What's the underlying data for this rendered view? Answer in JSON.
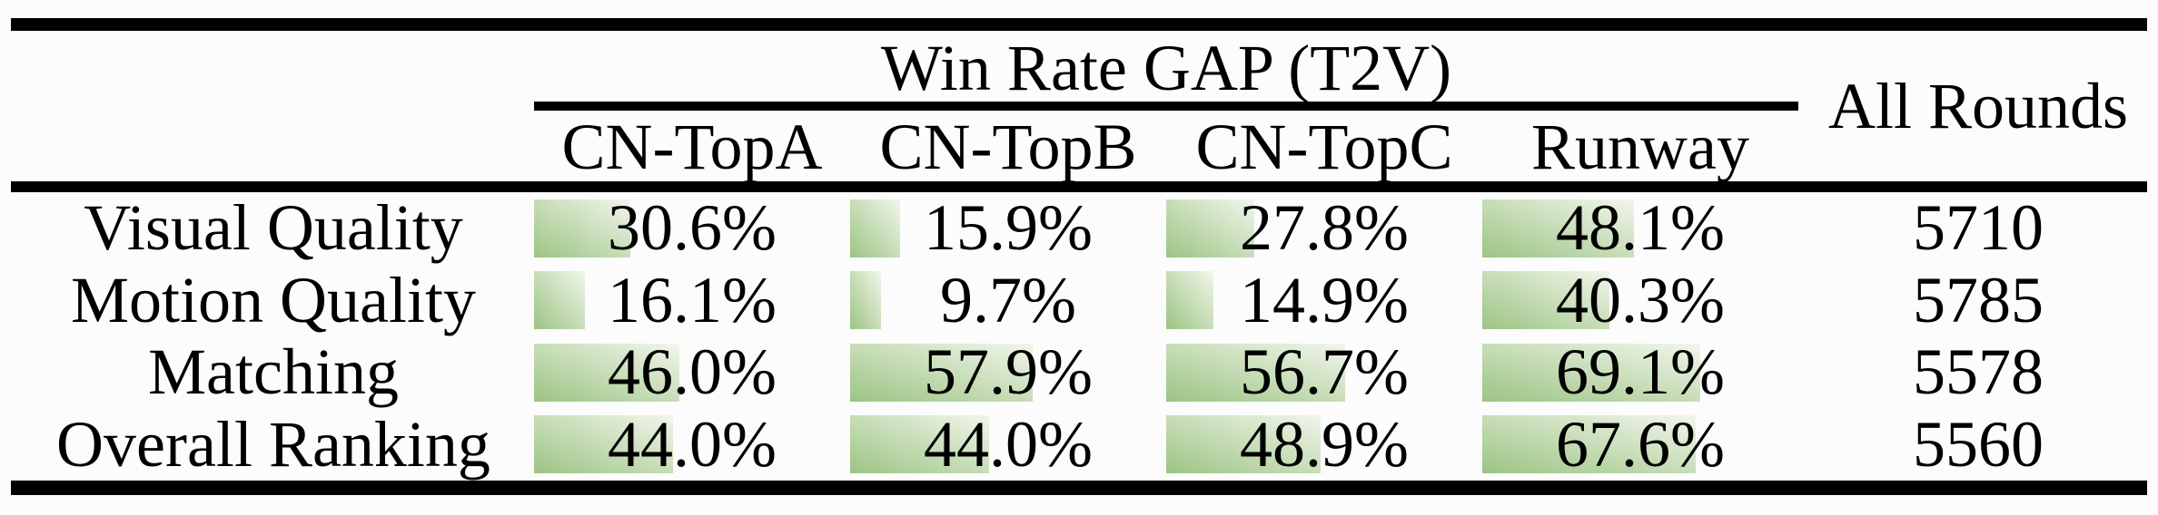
{
  "table": {
    "group_header": "Win Rate GAP (T2V)",
    "all_rounds_label": "All Rounds",
    "columns": [
      "CN-TopA",
      "CN-TopB",
      "CN-TopC",
      "Runway"
    ],
    "rows": [
      {
        "label": "Visual Quality",
        "cells": [
          "30.6%",
          "15.9%",
          "27.8%",
          "48.1%"
        ],
        "all_rounds": "5710"
      },
      {
        "label": "Motion Quality",
        "cells": [
          "16.1%",
          "9.7%",
          "14.9%",
          "40.3%"
        ],
        "all_rounds": "5785"
      },
      {
        "label": "Matching",
        "cells": [
          "46.0%",
          "57.9%",
          "56.7%",
          "69.1%"
        ],
        "all_rounds": "5578"
      },
      {
        "label": "Overall Ranking",
        "cells": [
          "44.0%",
          "44.0%",
          "48.9%",
          "67.6%"
        ],
        "all_rounds": "5560"
      }
    ],
    "colors": {
      "bar_gradient_start": "#9cc483",
      "bar_gradient_end": "#f2f6ec",
      "rule": "#000000",
      "background": "#fcfcfc"
    }
  },
  "chart_data": {
    "type": "table",
    "title": "Win Rate GAP (T2V)",
    "categories": [
      "Visual Quality",
      "Motion Quality",
      "Matching",
      "Overall Ranking"
    ],
    "series": [
      {
        "name": "CN-TopA",
        "values": [
          30.6,
          16.1,
          46.0,
          44.0
        ]
      },
      {
        "name": "CN-TopB",
        "values": [
          15.9,
          9.7,
          57.9,
          44.0
        ]
      },
      {
        "name": "CN-TopC",
        "values": [
          27.8,
          14.9,
          56.7,
          48.9
        ]
      },
      {
        "name": "Runway",
        "values": [
          48.1,
          40.3,
          69.1,
          67.6
        ]
      }
    ],
    "extra_columns": [
      {
        "name": "All Rounds",
        "values": [
          5710,
          5785,
          5578,
          5560
        ]
      }
    ],
    "value_unit": "%",
    "bar_scale_note": "in-cell bar width equals percentage of full column width",
    "legend_position": "none",
    "grid": false
  }
}
